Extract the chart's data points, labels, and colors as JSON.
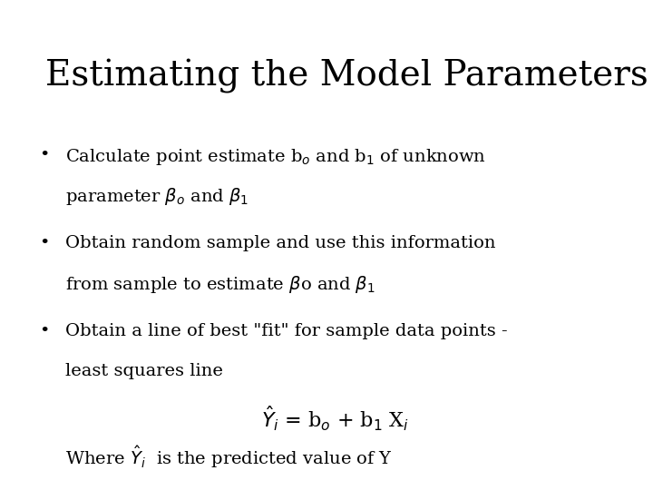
{
  "title": "Estimating the Model Parameters",
  "background_color": "#ffffff",
  "text_color": "#000000",
  "title_fontsize": 28,
  "body_fontsize": 14,
  "eq_fontsize": 16
}
